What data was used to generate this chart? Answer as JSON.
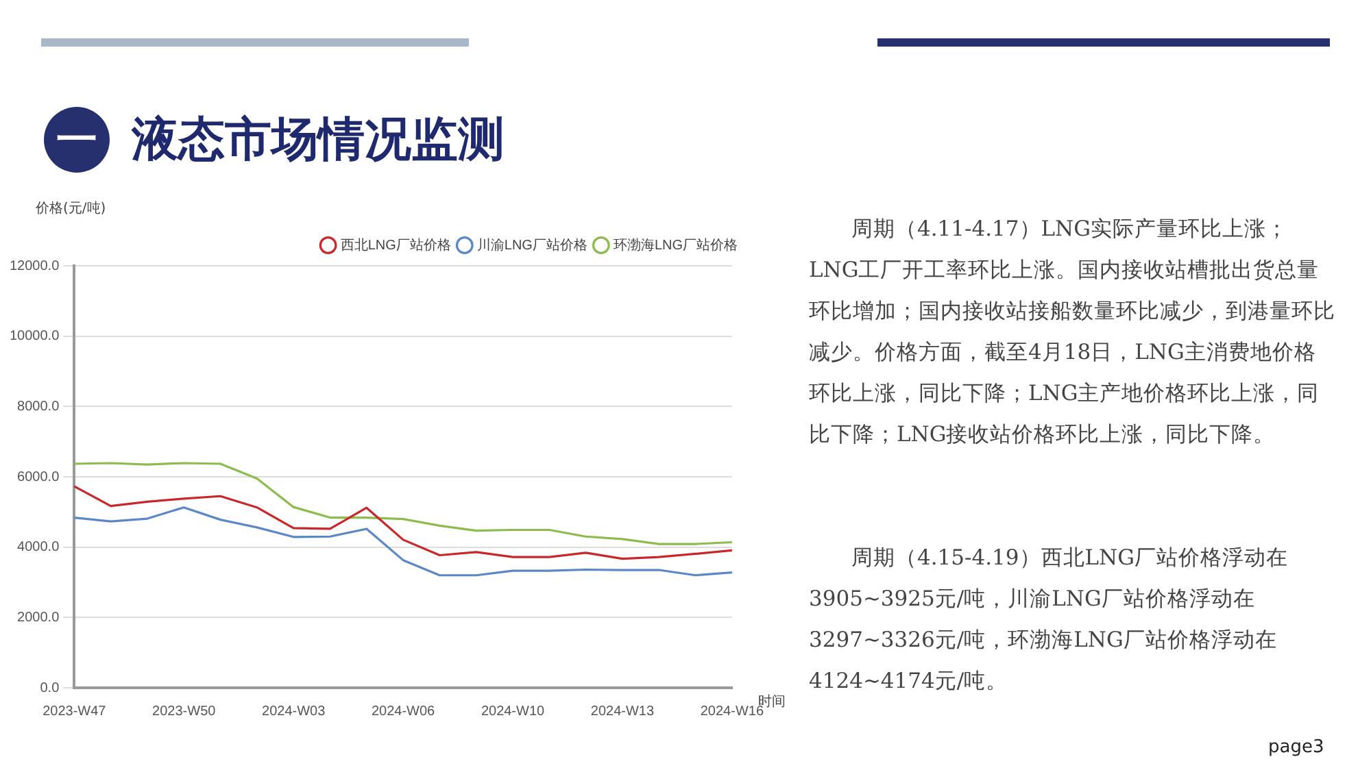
{
  "chart_data": {
    "type": "line",
    "title": "一 液态市场情况监测",
    "ylabel": "价格(元/吨)",
    "xlabel": "时间",
    "categories": [
      "2023-W47",
      null,
      null,
      "2023-W50",
      null,
      null,
      "2024-W03",
      null,
      null,
      "2024-W06",
      null,
      null,
      "2024-W10",
      null,
      null,
      "2024-W13",
      null,
      null,
      "2024-W16"
    ],
    "series": [
      {
        "name": "西北LNG厂站价格",
        "color": "#c8282a",
        "values": [
          5730,
          5170,
          5290,
          5380,
          5450,
          5130,
          4540,
          4520,
          5120,
          4210,
          3770,
          3860,
          3720,
          3720,
          3840,
          3670,
          3720,
          3810,
          3910
        ]
      },
      {
        "name": "川渝LNG厂站价格",
        "color": "#5b87c9",
        "values": [
          4840,
          4730,
          4810,
          5130,
          4780,
          4560,
          4290,
          4300,
          4520,
          3630,
          3200,
          3200,
          3330,
          3330,
          3360,
          3350,
          3350,
          3200,
          3280
        ]
      },
      {
        "name": "环渤海LNG厂站价格",
        "color": "#8cbb4e",
        "values": [
          6370,
          6390,
          6350,
          6390,
          6370,
          5950,
          5140,
          4840,
          4840,
          4800,
          4610,
          4470,
          4490,
          4490,
          4300,
          4230,
          4090,
          4090,
          4140
        ]
      }
    ],
    "ylim": [
      0,
      12000
    ],
    "yticks": [
      {
        "value": 0,
        "label": "0.0"
      },
      {
        "value": 2000,
        "label": "2000.0"
      },
      {
        "value": 4000,
        "label": "4000.0"
      },
      {
        "value": 6000,
        "label": "6000.0"
      },
      {
        "value": 8000,
        "label": "8000.0"
      },
      {
        "value": 10000,
        "label": "10000.0"
      },
      {
        "value": 12000,
        "label": "12000.0"
      }
    ],
    "grid": "y",
    "legend": "top right",
    "line_style": "solid",
    "annotations": [
      "周期（4.11-4.17）LNG实际产量环比上涨；LNG工厂开工率环比上涨。国内接收站槽批出货总量环比增加；国内接收站接船数量环比减少，到港量环比减少。价格方面，截至4月18日，LNG主消费地价格环比上涨，同比下降；LNG主产地价格环比上涨，同比下降；LNG接收站价格环比上涨，同比下降。",
      "周期（4.15-4.19）西北LNG厂站价格浮动在3905~3925元/吨，川渝LNG厂站价格浮动在3297~3326元/吨，环渤海LNG厂站价格浮动在4124~4174元/吨。",
      "page3"
    ]
  }
}
